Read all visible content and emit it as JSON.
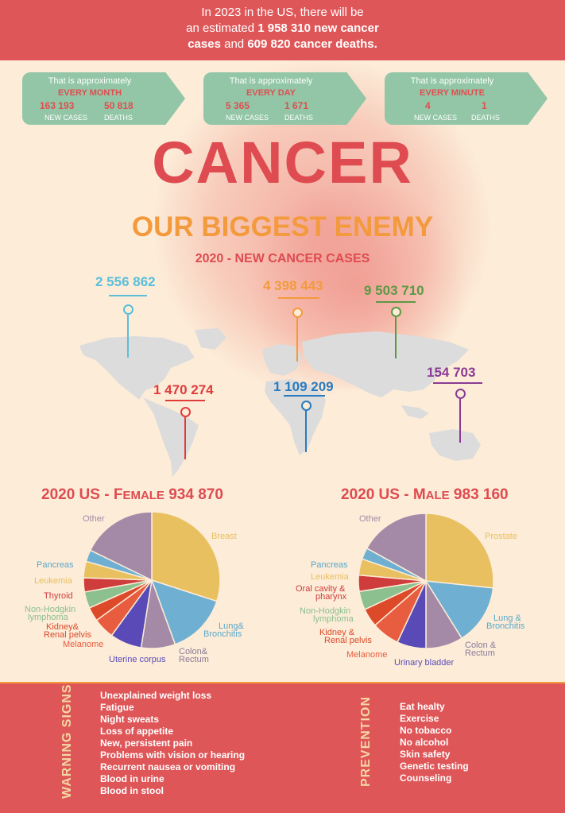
{
  "banner": {
    "line1": "In 2023 in the US, there will be",
    "line2a": "an estimated ",
    "line2b": "1 958 310",
    "line2c": " new cancer",
    "line3a": "cases",
    "line3b": " and ",
    "line3c": "609 820",
    "line3d": " cancer deaths."
  },
  "stats": [
    {
      "caption": "That is approximately",
      "period": "EVERY MONTH",
      "cases": "163 193",
      "deaths": "50 818",
      "cases_label": "NEW CASES",
      "deaths_label": "DEATHS"
    },
    {
      "caption": "That is approximately",
      "period": "EVERY DAY",
      "cases": "5 365",
      "deaths": "1 671",
      "cases_label": "NEW CASES",
      "deaths_label": "DEATHS"
    },
    {
      "caption": "That is approximately",
      "period": "EVERY MINUTE",
      "cases": "4",
      "deaths": "1",
      "cases_label": "NEW CASES",
      "deaths_label": "DEATHS"
    }
  ],
  "title": "CANCER",
  "subtitle": "OUR BIGGEST ENEMY",
  "map_title": "2020 - NEW CANCER CASES",
  "regions": [
    {
      "value": "2 556 862",
      "color": "#5bbfda"
    },
    {
      "value": "4 398 443",
      "color": "#f39a3c"
    },
    {
      "value": "9 503 710",
      "color": "#5a9a45"
    },
    {
      "value": "1 470 274",
      "color": "#e03c3c"
    },
    {
      "value": "1 109 209",
      "color": "#2b7bbd"
    },
    {
      "value": "154 703",
      "color": "#8a3b93"
    }
  ],
  "female": {
    "title_a": "2020 US - F",
    "title_b": "EMALE",
    "title_c": " 934 870",
    "labels": [
      "Other",
      "Breast",
      "Pancreas",
      "Leukemia",
      "Thyroid",
      "Non-Hodgkin",
      "lymphoma",
      "Kidney&",
      "Renal pelvis",
      "Melanome",
      "Uterine corpus",
      "Colon&",
      "Rectum",
      "Lung&",
      "Bronchitis"
    ]
  },
  "male": {
    "title_a": "2020 US - M",
    "title_b": "ALE",
    "title_c": " 983 160",
    "labels": [
      "Other",
      "Prostate",
      "Pancreas",
      "Leukemia",
      "Oral cavity &",
      "pharynx",
      "Non-Hodgkin",
      "lymphoma",
      "Kidney &",
      "Renal pelvis",
      "Melanome",
      "Urinary bladder",
      "Colon &",
      "Rectum",
      "Lung &",
      "Bronchitis"
    ]
  },
  "warning": {
    "title": "WARNING SIGNS",
    "items": [
      "Unexplained weight loss",
      "Fatigue",
      "Night sweats",
      "Loss of appetite",
      "New, persistent pain",
      "Problems with vision or hearing",
      "Recurrent nausea or vomiting",
      "Blood in urine",
      "Blood in stool"
    ]
  },
  "prevention": {
    "title": "PREVENTION",
    "items": [
      "Eat healty",
      "Exercise",
      "No tobacco",
      "No alcohol",
      "Skin safety",
      "Genetic testing",
      "Counseling"
    ]
  },
  "colors": {
    "red": "#df5658",
    "orange": "#f39a3c",
    "green": "#92c6a6",
    "cream": "#fcecd8"
  }
}
